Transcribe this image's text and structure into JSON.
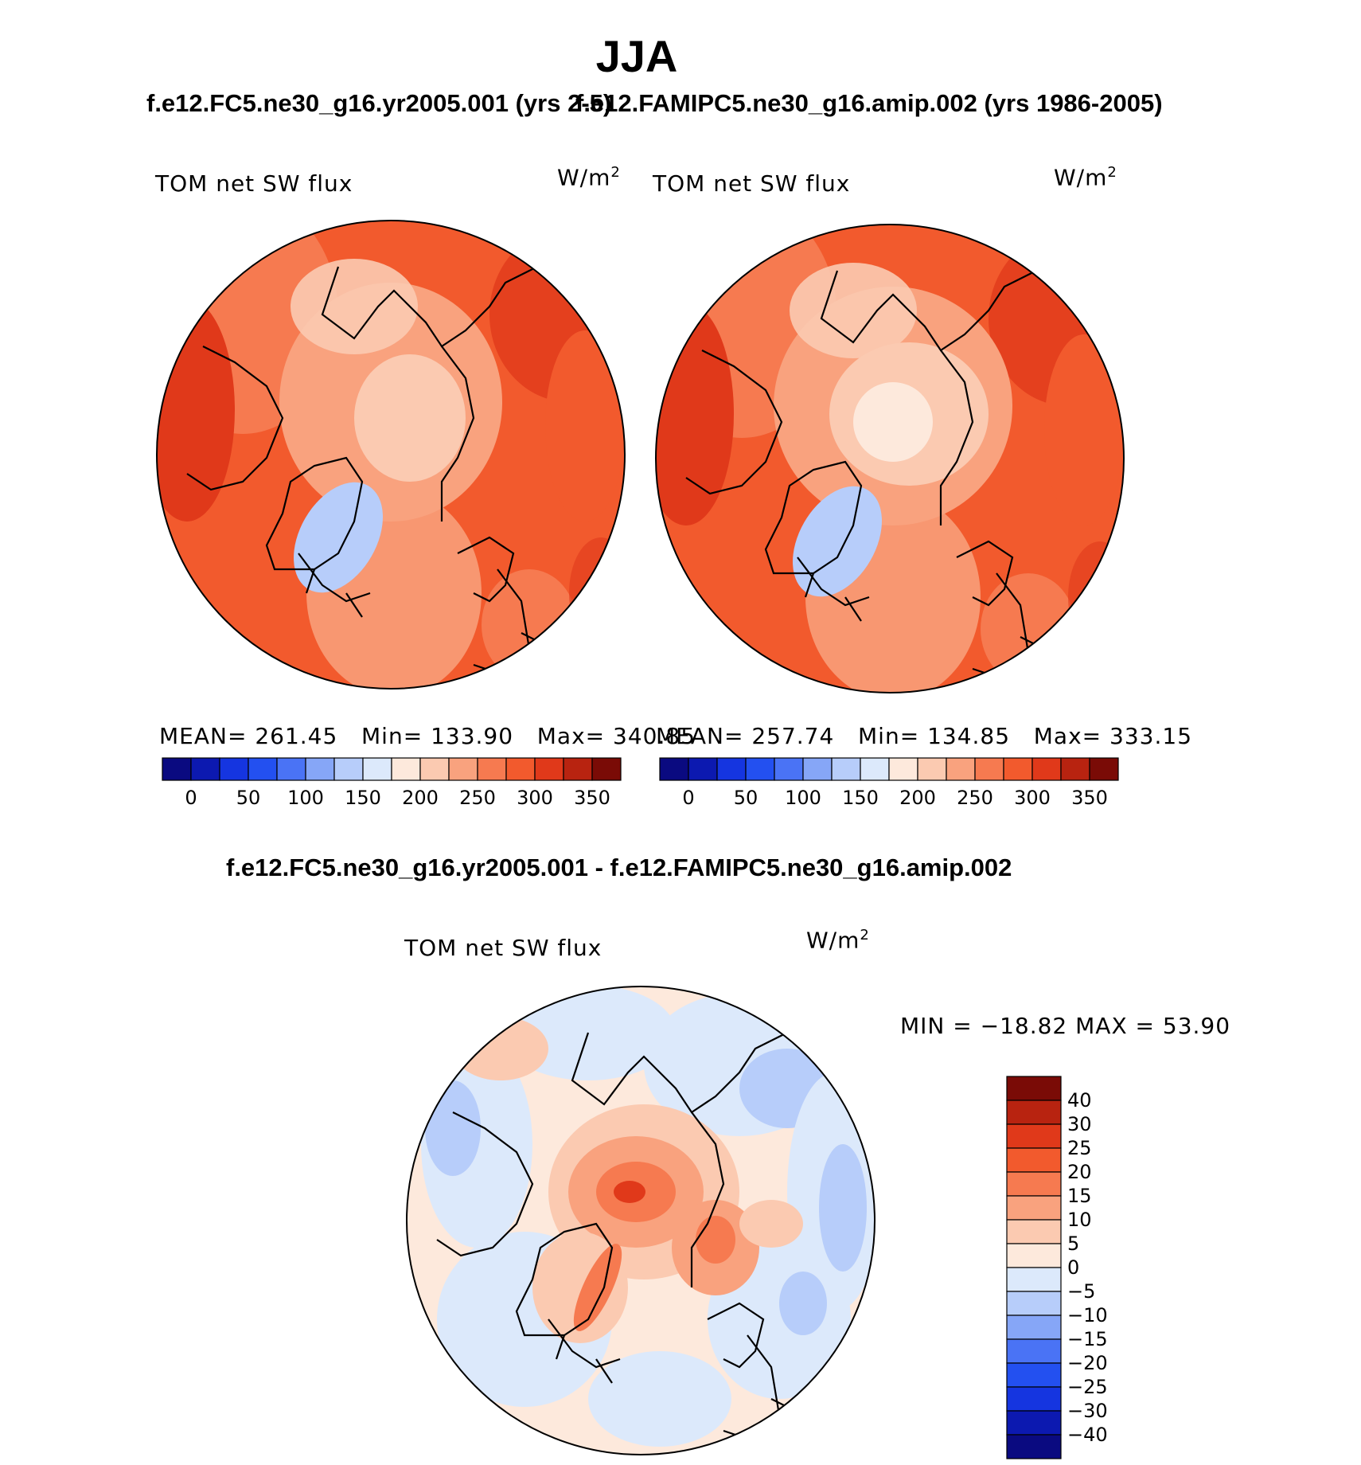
{
  "season": "JJA",
  "panels": [
    {
      "case": "f.e12.FC5.ne30_g16.yr2005.001 (yrs 2-5)",
      "variable": "TOM net SW flux",
      "units": "W/m",
      "units_sup": "2",
      "stats": {
        "mean_label": "MEAN=",
        "mean": "261.45",
        "min_label": "Min=",
        "min": "133.90",
        "max_label": "Max=",
        "max": "340.85"
      },
      "colorbar": {
        "colors": [
          "#0a0a80",
          "#0c19b0",
          "#1535e0",
          "#2350f0",
          "#4a73f5",
          "#86a6f7",
          "#b7cdfa",
          "#dce9fb",
          "#fde9dc",
          "#fbcab1",
          "#f9a27e",
          "#f67a50",
          "#f25a2d",
          "#e0391a",
          "#b82310",
          "#7a0b06"
        ],
        "labels": [
          "0",
          "50",
          "100",
          "150",
          "200",
          "250",
          "300",
          "350"
        ]
      }
    },
    {
      "case": "f.e12.FAMIPC5.ne30_g16.amip.002 (yrs 1986-2005)",
      "variable": "TOM net SW flux",
      "units": "W/m",
      "units_sup": "2",
      "stats": {
        "mean_label": "MEAN=",
        "mean": "257.74",
        "min_label": "Min=",
        "min": "134.85",
        "max_label": "Max=",
        "max": "333.15"
      },
      "colorbar": {
        "colors": [
          "#0a0a80",
          "#0c19b0",
          "#1535e0",
          "#2350f0",
          "#4a73f5",
          "#86a6f7",
          "#b7cdfa",
          "#dce9fb",
          "#fde9dc",
          "#fbcab1",
          "#f9a27e",
          "#f67a50",
          "#f25a2d",
          "#e0391a",
          "#b82310",
          "#7a0b06"
        ],
        "labels": [
          "0",
          "50",
          "100",
          "150",
          "200",
          "250",
          "300",
          "350"
        ]
      }
    }
  ],
  "difference": {
    "title": "f.e12.FC5.ne30_g16.yr2005.001 - f.e12.FAMIPC5.ne30_g16.amip.002",
    "variable": "TOM net SW flux",
    "units": "W/m",
    "units_sup": "2",
    "minmax": "MIN = −18.82 MAX =   53.90",
    "colorbar": {
      "colors": [
        "#7a0b06",
        "#b82310",
        "#e0391a",
        "#f25a2d",
        "#f67a50",
        "#f9a27e",
        "#fbcab1",
        "#fde9dc",
        "#dce9fb",
        "#b7cdfa",
        "#86a6f7",
        "#4a73f5",
        "#2350f0",
        "#1535e0",
        "#0c19b0",
        "#0a0a80"
      ],
      "labels": [
        "40",
        "30",
        "25",
        "20",
        "15",
        "10",
        "5",
        "0",
        "−5",
        "−10",
        "−15",
        "−20",
        "−25",
        "−30",
        "−40"
      ]
    }
  }
}
